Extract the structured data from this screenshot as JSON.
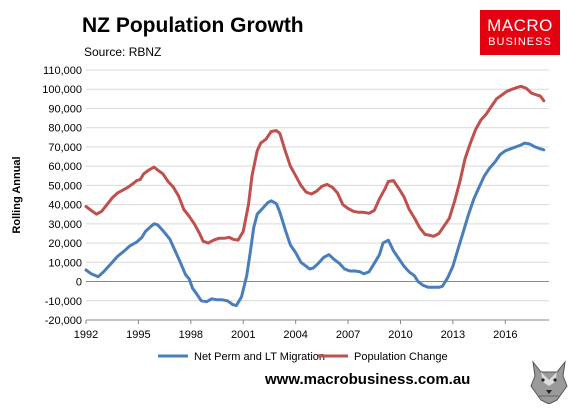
{
  "header": {
    "title": "NZ Population Growth",
    "source": "Source: RBNZ"
  },
  "logo": {
    "line1": "MACRO",
    "line2": "BUSINESS"
  },
  "footer": {
    "url": "www.macrobusiness.com.au"
  },
  "chart_data": {
    "type": "line",
    "title": "NZ Population Growth",
    "ylabel": "Rolling Annual",
    "xlabel": "",
    "xlim": [
      1992,
      2018.5
    ],
    "ylim": [
      -20000,
      110000
    ],
    "yticks": [
      -20000,
      -10000,
      0,
      10000,
      20000,
      30000,
      40000,
      50000,
      60000,
      70000,
      80000,
      90000,
      100000,
      110000
    ],
    "ytick_labels": [
      "-20,000",
      "-10,000",
      "0",
      "10,000",
      "20,000",
      "30,000",
      "40,000",
      "50,000",
      "60,000",
      "70,000",
      "80,000",
      "90,000",
      "100,000",
      "110,000"
    ],
    "xticks": [
      1992,
      1995,
      1998,
      2001,
      2004,
      2007,
      2010,
      2013,
      2016
    ],
    "xtick_labels": [
      "1992",
      "1995",
      "1998",
      "2001",
      "2004",
      "2007",
      "2010",
      "2013",
      "2016"
    ],
    "legend_position": "bottom",
    "series": [
      {
        "name": "Net Perm and LT Migration",
        "color": "#4a7ebb",
        "points": [
          [
            1992.0,
            6000
          ],
          [
            1992.3,
            4000
          ],
          [
            1992.7,
            2500
          ],
          [
            1993.0,
            5000
          ],
          [
            1993.4,
            9000
          ],
          [
            1993.8,
            13000
          ],
          [
            1994.2,
            16000
          ],
          [
            1994.5,
            18500
          ],
          [
            1994.9,
            20500
          ],
          [
            1995.2,
            23000
          ],
          [
            1995.4,
            26000
          ],
          [
            1995.7,
            28500
          ],
          [
            1995.9,
            30000
          ],
          [
            1996.1,
            29500
          ],
          [
            1996.4,
            26500
          ],
          [
            1996.8,
            22000
          ],
          [
            1997.1,
            16000
          ],
          [
            1997.4,
            10000
          ],
          [
            1997.7,
            3500
          ],
          [
            1997.9,
            1500
          ],
          [
            1998.1,
            -3500
          ],
          [
            1998.3,
            -6000
          ],
          [
            1998.6,
            -10000
          ],
          [
            1998.9,
            -10500
          ],
          [
            1999.2,
            -9000
          ],
          [
            1999.5,
            -9500
          ],
          [
            1999.8,
            -9500
          ],
          [
            2000.1,
            -10000
          ],
          [
            2000.4,
            -12000
          ],
          [
            2000.6,
            -12500
          ],
          [
            2000.9,
            -8000
          ],
          [
            2001.2,
            3000
          ],
          [
            2001.4,
            15000
          ],
          [
            2001.6,
            28000
          ],
          [
            2001.8,
            35000
          ],
          [
            2002.1,
            38000
          ],
          [
            2002.4,
            41000
          ],
          [
            2002.6,
            42000
          ],
          [
            2002.9,
            40500
          ],
          [
            2003.1,
            36000
          ],
          [
            2003.4,
            27000
          ],
          [
            2003.7,
            19000
          ],
          [
            2004.0,
            15000
          ],
          [
            2004.3,
            10000
          ],
          [
            2004.6,
            8000
          ],
          [
            2004.8,
            6500
          ],
          [
            2005.0,
            7000
          ],
          [
            2005.3,
            9500
          ],
          [
            2005.6,
            12500
          ],
          [
            2005.9,
            14000
          ],
          [
            2006.2,
            11500
          ],
          [
            2006.5,
            9500
          ],
          [
            2006.8,
            6500
          ],
          [
            2007.1,
            5500
          ],
          [
            2007.4,
            5500
          ],
          [
            2007.7,
            5000
          ],
          [
            2007.9,
            4000
          ],
          [
            2008.2,
            5000
          ],
          [
            2008.5,
            9500
          ],
          [
            2008.8,
            14000
          ],
          [
            2009.0,
            20000
          ],
          [
            2009.3,
            21500
          ],
          [
            2009.6,
            16000
          ],
          [
            2009.9,
            12000
          ],
          [
            2010.2,
            8000
          ],
          [
            2010.5,
            5000
          ],
          [
            2010.8,
            3000
          ],
          [
            2011.0,
            0
          ],
          [
            2011.3,
            -2000
          ],
          [
            2011.6,
            -3000
          ],
          [
            2011.9,
            -3000
          ],
          [
            2012.2,
            -3000
          ],
          [
            2012.4,
            -2500
          ],
          [
            2012.7,
            2000
          ],
          [
            2013.0,
            8000
          ],
          [
            2013.3,
            17000
          ],
          [
            2013.6,
            26000
          ],
          [
            2013.9,
            35000
          ],
          [
            2014.2,
            43000
          ],
          [
            2014.5,
            49000
          ],
          [
            2014.8,
            55000
          ],
          [
            2015.1,
            59000
          ],
          [
            2015.4,
            62000
          ],
          [
            2015.7,
            66000
          ],
          [
            2016.0,
            68000
          ],
          [
            2016.3,
            69000
          ],
          [
            2016.6,
            70000
          ],
          [
            2016.9,
            71000
          ],
          [
            2017.1,
            72000
          ],
          [
            2017.4,
            71500
          ],
          [
            2017.7,
            70000
          ],
          [
            2018.0,
            69000
          ],
          [
            2018.2,
            68500
          ]
        ]
      },
      {
        "name": "Population Change",
        "color": "#c0504d",
        "points": [
          [
            1992.0,
            39000
          ],
          [
            1992.3,
            37000
          ],
          [
            1992.6,
            35000
          ],
          [
            1992.9,
            36500
          ],
          [
            1993.2,
            40000
          ],
          [
            1993.5,
            43500
          ],
          [
            1993.8,
            46000
          ],
          [
            1994.1,
            47500
          ],
          [
            1994.4,
            49000
          ],
          [
            1994.7,
            51000
          ],
          [
            1994.9,
            52500
          ],
          [
            1995.1,
            53000
          ],
          [
            1995.3,
            56000
          ],
          [
            1995.6,
            58000
          ],
          [
            1995.9,
            59500
          ],
          [
            1996.1,
            58000
          ],
          [
            1996.4,
            56000
          ],
          [
            1996.7,
            52000
          ],
          [
            1997.0,
            49000
          ],
          [
            1997.3,
            44500
          ],
          [
            1997.6,
            37500
          ],
          [
            1997.9,
            34000
          ],
          [
            1998.2,
            30000
          ],
          [
            1998.5,
            25000
          ],
          [
            1998.7,
            21000
          ],
          [
            1999.0,
            20000
          ],
          [
            1999.3,
            21500
          ],
          [
            1999.6,
            22500
          ],
          [
            1999.9,
            22500
          ],
          [
            2000.2,
            23000
          ],
          [
            2000.4,
            22000
          ],
          [
            2000.7,
            21500
          ],
          [
            2001.0,
            26000
          ],
          [
            2001.3,
            40000
          ],
          [
            2001.5,
            55000
          ],
          [
            2001.8,
            68000
          ],
          [
            2002.0,
            72000
          ],
          [
            2002.3,
            74000
          ],
          [
            2002.6,
            78000
          ],
          [
            2002.9,
            78500
          ],
          [
            2003.1,
            77000
          ],
          [
            2003.4,
            68000
          ],
          [
            2003.7,
            60000
          ],
          [
            2004.0,
            55000
          ],
          [
            2004.3,
            50000
          ],
          [
            2004.6,
            46500
          ],
          [
            2004.9,
            45500
          ],
          [
            2005.2,
            47000
          ],
          [
            2005.5,
            49500
          ],
          [
            2005.8,
            50500
          ],
          [
            2006.1,
            49000
          ],
          [
            2006.4,
            46000
          ],
          [
            2006.7,
            40000
          ],
          [
            2007.0,
            38000
          ],
          [
            2007.3,
            36500
          ],
          [
            2007.6,
            36000
          ],
          [
            2007.9,
            36000
          ],
          [
            2008.2,
            35500
          ],
          [
            2008.5,
            37000
          ],
          [
            2008.8,
            43000
          ],
          [
            2009.1,
            48000
          ],
          [
            2009.3,
            52000
          ],
          [
            2009.6,
            52500
          ],
          [
            2009.9,
            48500
          ],
          [
            2010.2,
            44000
          ],
          [
            2010.5,
            37500
          ],
          [
            2010.8,
            33000
          ],
          [
            2011.1,
            28000
          ],
          [
            2011.4,
            24500
          ],
          [
            2011.7,
            24000
          ],
          [
            2011.9,
            23500
          ],
          [
            2012.2,
            25000
          ],
          [
            2012.5,
            29000
          ],
          [
            2012.8,
            33000
          ],
          [
            2013.1,
            42000
          ],
          [
            2013.4,
            52000
          ],
          [
            2013.7,
            64000
          ],
          [
            2014.0,
            72000
          ],
          [
            2014.3,
            79000
          ],
          [
            2014.6,
            84000
          ],
          [
            2014.9,
            87000
          ],
          [
            2015.2,
            91000
          ],
          [
            2015.5,
            95000
          ],
          [
            2015.8,
            97000
          ],
          [
            2016.1,
            99000
          ],
          [
            2016.4,
            100000
          ],
          [
            2016.7,
            101000
          ],
          [
            2016.9,
            101500
          ],
          [
            2017.2,
            100500
          ],
          [
            2017.5,
            98000
          ],
          [
            2017.8,
            97000
          ],
          [
            2018.0,
            96500
          ],
          [
            2018.2,
            94000
          ]
        ]
      }
    ]
  }
}
